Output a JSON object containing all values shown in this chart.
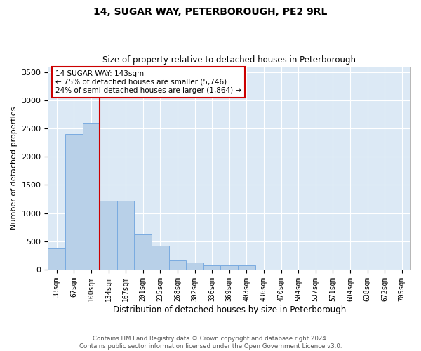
{
  "title": "14, SUGAR WAY, PETERBOROUGH, PE2 9RL",
  "subtitle": "Size of property relative to detached houses in Peterborough",
  "xlabel": "Distribution of detached houses by size in Peterborough",
  "ylabel": "Number of detached properties",
  "footer_line1": "Contains HM Land Registry data © Crown copyright and database right 2024.",
  "footer_line2": "Contains public sector information licensed under the Open Government Licence v3.0.",
  "categories": [
    "33sqm",
    "67sqm",
    "100sqm",
    "134sqm",
    "167sqm",
    "201sqm",
    "235sqm",
    "268sqm",
    "302sqm",
    "336sqm",
    "369sqm",
    "403sqm",
    "436sqm",
    "470sqm",
    "504sqm",
    "537sqm",
    "571sqm",
    "604sqm",
    "638sqm",
    "672sqm",
    "705sqm"
  ],
  "bar_values": [
    390,
    2400,
    2600,
    1220,
    1220,
    620,
    420,
    160,
    120,
    80,
    70,
    70,
    0,
    0,
    0,
    0,
    0,
    0,
    0,
    0,
    0
  ],
  "bar_color": "#b8d0e8",
  "bar_edge_color": "#7aabe0",
  "background_color": "#dce9f5",
  "grid_color": "#ffffff",
  "vline_x": 2.5,
  "vline_color": "#cc0000",
  "annotation_text": "14 SUGAR WAY: 143sqm\n← 75% of detached houses are smaller (5,746)\n24% of semi-detached houses are larger (1,864) →",
  "annotation_box_color": "#ffffff",
  "annotation_box_edge": "#cc0000",
  "ylim": [
    0,
    3600
  ],
  "yticks": [
    0,
    500,
    1000,
    1500,
    2000,
    2500,
    3000,
    3500
  ]
}
